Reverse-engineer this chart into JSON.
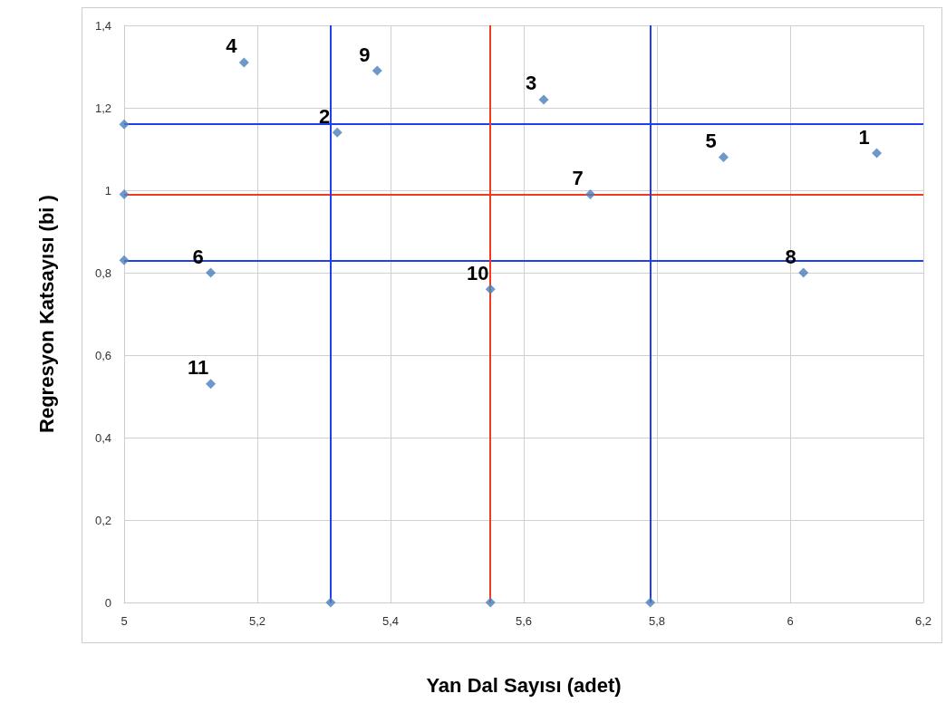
{
  "chart_data": {
    "type": "scatter",
    "xlabel": "Yan Dal Sayısı (adet)",
    "ylabel": "Regresyon Katsayısı (bi )",
    "x": [
      6.13,
      5.32,
      5.63,
      5.18,
      5.9,
      5.13,
      5.7,
      6.02,
      5.38,
      5.55,
      5.13,
      5,
      5,
      5,
      5.31,
      5.55,
      5.79
    ],
    "series": [
      {
        "color": "#4a7ebb",
        "values": [
          1.09,
          1.14,
          1.22,
          1.31,
          1.08,
          0.8,
          0.99,
          0.8,
          1.29,
          0.76,
          0.53,
          1.16,
          0.99,
          0.83,
          0,
          0,
          0
        ]
      }
    ],
    "annotations": [
      {
        "text": "1",
        "x": 6.13,
        "y": 1.09
      },
      {
        "text": "2",
        "x": 5.32,
        "y": 1.14
      },
      {
        "text": "3",
        "x": 5.63,
        "y": 1.22
      },
      {
        "text": "4",
        "x": 5.18,
        "y": 1.31
      },
      {
        "text": "5",
        "x": 5.9,
        "y": 1.08
      },
      {
        "text": "6",
        "x": 5.13,
        "y": 0.8
      },
      {
        "text": "7",
        "x": 5.7,
        "y": 0.99
      },
      {
        "text": "8",
        "x": 6.02,
        "y": 0.8
      },
      {
        "text": "9",
        "x": 5.38,
        "y": 1.29
      },
      {
        "text": "10",
        "x": 5.55,
        "y": 0.76
      },
      {
        "text": "11",
        "x": 5.13,
        "y": 0.53
      }
    ],
    "marker": "diamond",
    "grid": true,
    "xlim": [
      5,
      6.2
    ],
    "xticks": [
      5,
      {
        "value": 5.2,
        "label": "5,2"
      },
      {
        "value": 5.4,
        "label": "5,4"
      },
      {
        "value": 5.6,
        "label": "5,6"
      },
      {
        "value": 5.8,
        "label": "5,8"
      },
      6,
      {
        "value": 6.2,
        "label": "6,2"
      }
    ],
    "ylim": [
      0,
      1.4
    ],
    "yticks": [
      0,
      {
        "value": 0.2,
        "label": "0,2"
      },
      {
        "value": 0.4,
        "label": "0,4"
      },
      {
        "value": 0.6,
        "label": "0,6"
      },
      {
        "value": 0.8,
        "label": "0,8"
      },
      1,
      {
        "value": 1.2,
        "label": "1,2"
      },
      {
        "value": 1.4,
        "label": "1,4"
      }
    ],
    "ref_lines": [
      {
        "axis": "y",
        "value": 1.16,
        "color": "#1f3ff0"
      },
      {
        "axis": "y",
        "value": 0.99,
        "color": "#f23b1c"
      },
      {
        "axis": "y",
        "value": 0.83,
        "color": "#1f3ff0"
      },
      {
        "axis": "x",
        "value": 5.31,
        "color": "#1f3ff0"
      },
      {
        "axis": "x",
        "value": 5.55,
        "color": "#f23b1c"
      },
      {
        "axis": "x",
        "value": 5.79,
        "color": "#1f3ff0"
      }
    ]
  }
}
